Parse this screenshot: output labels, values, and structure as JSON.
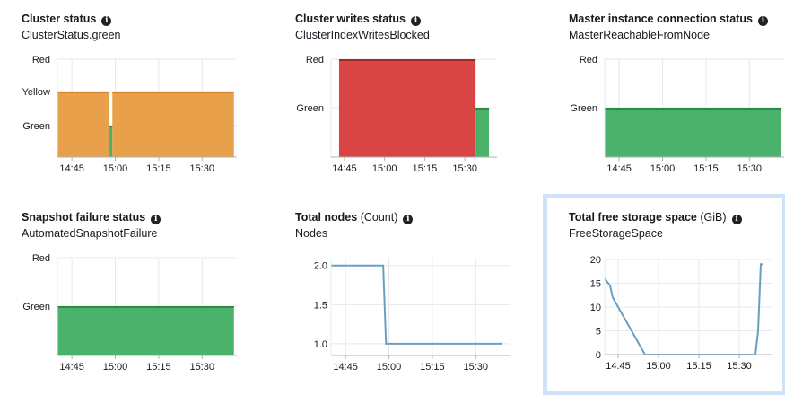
{
  "panels": [
    {
      "title": "Cluster status",
      "unit": "",
      "metric": "ClusterStatus.green",
      "info_icon": "info-circle-icon"
    },
    {
      "title": "Cluster writes status",
      "unit": "",
      "metric": "ClusterIndexWritesBlocked",
      "info_icon": "info-circle-icon"
    },
    {
      "title": "Master instance connection status",
      "unit": "",
      "metric": "MasterReachableFromNode",
      "info_icon": "info-circle-icon"
    },
    {
      "title": "Snapshot failure status",
      "unit": "",
      "metric": "AutomatedSnapshotFailure",
      "info_icon": "info-circle-icon"
    },
    {
      "title": "Total nodes",
      "unit": "(Count)",
      "metric": "Nodes",
      "info_icon": "info-circle-icon"
    },
    {
      "title": "Total free storage space",
      "unit": "(GiB)",
      "metric": "FreeStorageSpace",
      "info_icon": "info-circle-icon"
    }
  ],
  "colors": {
    "yellow": "#e8a04a",
    "yellow_line": "#d9822b",
    "red": "#d94545",
    "red_line": "#a32626",
    "green": "#4ab26a",
    "green_line": "#2b8a46",
    "line": "#6a9fc0",
    "grid": "#e8e8e8",
    "axis": "#b0b0b0",
    "selected": "#cfe2f7"
  },
  "chart_data": [
    {
      "type": "area",
      "title": "Cluster status",
      "time_ticks": [
        "14:45",
        "15:00",
        "15:15",
        "15:30"
      ],
      "y_levels": [
        "Red",
        "Yellow",
        "Green"
      ],
      "x_range": [
        "14:40",
        "15:42"
      ],
      "segments": [
        {
          "start": "14:40",
          "end": "14:58",
          "state": "Yellow"
        },
        {
          "start": "14:58",
          "end": "14:59",
          "state": "Green"
        },
        {
          "start": "14:59",
          "end": "15:41",
          "state": "Yellow"
        }
      ]
    },
    {
      "type": "area",
      "title": "Cluster writes status",
      "time_ticks": [
        "14:45",
        "15:00",
        "15:15",
        "15:30"
      ],
      "y_levels": [
        "Red",
        "Green"
      ],
      "x_range": [
        "14:40",
        "15:42"
      ],
      "segments": [
        {
          "start": "14:43",
          "end": "15:34",
          "state": "Red"
        },
        {
          "start": "15:34",
          "end": "15:39",
          "state": "Green"
        }
      ]
    },
    {
      "type": "area",
      "title": "Master instance connection status",
      "time_ticks": [
        "14:45",
        "15:00",
        "15:15",
        "15:30"
      ],
      "y_levels": [
        "Red",
        "Green"
      ],
      "x_range": [
        "14:40",
        "15:42"
      ],
      "segments": [
        {
          "start": "14:40",
          "end": "15:41",
          "state": "Green"
        }
      ]
    },
    {
      "type": "area",
      "title": "Snapshot failure status",
      "time_ticks": [
        "14:45",
        "15:00",
        "15:15",
        "15:30"
      ],
      "y_levels": [
        "Red",
        "Green"
      ],
      "x_range": [
        "14:40",
        "15:42"
      ],
      "segments": [
        {
          "start": "14:40",
          "end": "15:41",
          "state": "Green"
        }
      ]
    },
    {
      "type": "line",
      "title": "Total nodes",
      "unit": "Count",
      "time_ticks": [
        "14:45",
        "15:00",
        "15:15",
        "15:30"
      ],
      "y_ticks": [
        "2.0",
        "1.5",
        "1.0"
      ],
      "x_range": [
        "14:40",
        "15:42"
      ],
      "ylim": [
        0.85,
        2.1
      ],
      "points": [
        [
          "14:40",
          2.0
        ],
        [
          "14:58",
          2.0
        ],
        [
          "14:59",
          1.0
        ],
        [
          "15:39",
          1.0
        ]
      ]
    },
    {
      "type": "line",
      "title": "Total free storage space",
      "unit": "GiB",
      "time_ticks": [
        "14:45",
        "15:00",
        "15:15",
        "15:30"
      ],
      "y_ticks": [
        "20",
        "15",
        "10",
        "5",
        "0"
      ],
      "x_range": [
        "14:40",
        "15:42"
      ],
      "ylim": [
        0,
        20
      ],
      "points": [
        [
          "14:40",
          16
        ],
        [
          "14:42",
          14.5
        ],
        [
          "14:43",
          12
        ],
        [
          "14:55",
          0
        ],
        [
          "15:36",
          0
        ],
        [
          "15:37",
          5
        ],
        [
          "15:38",
          19
        ],
        [
          "15:39",
          19
        ]
      ]
    }
  ]
}
